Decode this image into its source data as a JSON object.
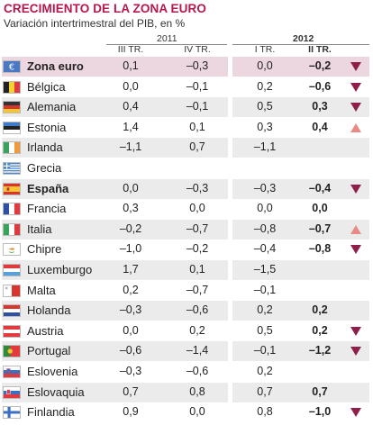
{
  "chart_data": {
    "type": "table",
    "title": "CRECIMIENTO DE LA ZONA EURO",
    "subtitle": "Variación intertrimestral del PIB, en %",
    "year_groups": [
      {
        "label": "2011",
        "columns": [
          "III TR.",
          "IV TR."
        ]
      },
      {
        "label": "2012",
        "columns": [
          "I TR.",
          "II TR."
        ]
      }
    ],
    "columns": [
      "III TR.",
      "IV TR.",
      "I TR.",
      "II TR."
    ],
    "rows": [
      {
        "country": "Zona euro",
        "flag": "eu-flag",
        "values": [
          "0,1",
          "–0,3",
          "0,0",
          "–0,2"
        ],
        "trend": "down",
        "bold": true
      },
      {
        "country": "Bélgica",
        "flag": "belgium-flag",
        "values": [
          "0,0",
          "–0,1",
          "0,2",
          "–0,6"
        ],
        "trend": "down",
        "bold": false
      },
      {
        "country": "Alemania",
        "flag": "germany-flag",
        "values": [
          "0,4",
          "–0,1",
          "0,5",
          "0,3"
        ],
        "trend": "down",
        "bold": false
      },
      {
        "country": "Estonia",
        "flag": "estonia-flag",
        "values": [
          "1,4",
          "0,1",
          "0,3",
          "0,4"
        ],
        "trend": "up",
        "bold": false
      },
      {
        "country": "Irlanda",
        "flag": "ireland-flag",
        "values": [
          "–1,1",
          "0,7",
          "–1,1",
          ""
        ],
        "trend": "",
        "bold": false
      },
      {
        "country": "Grecia",
        "flag": "greece-flag",
        "values": [
          "",
          "",
          "",
          ""
        ],
        "trend": "",
        "bold": false
      },
      {
        "country": "España",
        "flag": "spain-flag",
        "values": [
          "0,0",
          "–0,3",
          "–0,3",
          "–0,4"
        ],
        "trend": "down",
        "bold": true
      },
      {
        "country": "Francia",
        "flag": "france-flag",
        "values": [
          "0,3",
          "0,0",
          "0,0",
          "0,0"
        ],
        "trend": "",
        "bold": false
      },
      {
        "country": "Italia",
        "flag": "italy-flag",
        "values": [
          "–0,2",
          "–0,7",
          "–0,8",
          "–0,7"
        ],
        "trend": "up",
        "bold": false
      },
      {
        "country": "Chipre",
        "flag": "cyprus-flag",
        "values": [
          "–1,0",
          "–0,2",
          "–0,4",
          "–0,8"
        ],
        "trend": "down",
        "bold": false
      },
      {
        "country": "Luxemburgo",
        "flag": "luxembourg-flag",
        "values": [
          "1,7",
          "0,1",
          "–1,5",
          ""
        ],
        "trend": "",
        "bold": false
      },
      {
        "country": "Malta",
        "flag": "malta-flag",
        "values": [
          "0,2",
          "–0,7",
          "–0,1",
          ""
        ],
        "trend": "",
        "bold": false
      },
      {
        "country": "Holanda",
        "flag": "netherlands-flag",
        "values": [
          "–0,3",
          "–0,6",
          "0,2",
          "0,2"
        ],
        "trend": "",
        "bold": false
      },
      {
        "country": "Austria",
        "flag": "austria-flag",
        "values": [
          "0,0",
          "0,2",
          "0,5",
          "0,2"
        ],
        "trend": "down",
        "bold": false
      },
      {
        "country": "Portugal",
        "flag": "portugal-flag",
        "values": [
          "–0,6",
          "–1,4",
          "–0,1",
          "–1,2"
        ],
        "trend": "down",
        "bold": false
      },
      {
        "country": "Eslovenia",
        "flag": "slovenia-flag",
        "values": [
          "–0,3",
          "–0,6",
          "0,2",
          ""
        ],
        "trend": "",
        "bold": false
      },
      {
        "country": "Eslovaquia",
        "flag": "slovakia-flag",
        "values": [
          "0,7",
          "0,8",
          "0,7",
          "0,7"
        ],
        "trend": "",
        "bold": false
      },
      {
        "country": "Finlandia",
        "flag": "finland-flag",
        "values": [
          "0,9",
          "0,0",
          "0,8",
          "–1,0"
        ],
        "trend": "down",
        "bold": false
      }
    ]
  },
  "colors": {
    "title": "#b5164c",
    "arrow_down": "#8e1f4a",
    "arrow_up": "#e88a86",
    "highlight_row": "#ecd6df",
    "shaded_row": "#ebebeb"
  }
}
